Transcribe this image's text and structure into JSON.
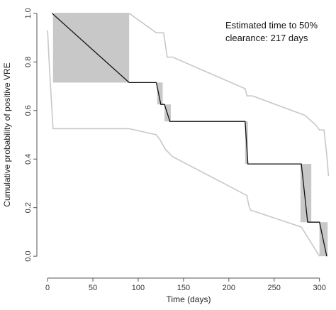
{
  "chart_data": {
    "type": "line",
    "title": "",
    "xlabel": "Time (days)",
    "ylabel": "Cumulative probability of positive VRE",
    "xlim": [
      -4,
      312
    ],
    "ylim": [
      -0.02,
      1.02
    ],
    "x_ticks": [
      0,
      50,
      100,
      150,
      200,
      250,
      300
    ],
    "y_ticks": [
      0.0,
      0.2,
      0.4,
      0.6,
      0.8,
      1.0
    ],
    "x_tick_labels": [
      "0",
      "50",
      "100",
      "150",
      "200",
      "250",
      "300"
    ],
    "y_tick_labels": [
      "0.0",
      "0.2",
      "0.4",
      "0.6",
      "0.8",
      "1.0"
    ],
    "grid": false,
    "annotation": [
      "Estimated time to 50%",
      "clearance: 217 days"
    ],
    "colors": {
      "estimate": "#111111",
      "ci": "#c8c8c8",
      "interval_fill": "#c8c8c8"
    },
    "series": [
      {
        "role": "estimate",
        "x": [
          5,
          90,
          120,
          125,
          129,
          135,
          218,
          221,
          280,
          287,
          300,
          308
        ],
        "y": [
          1.0,
          0.715,
          0.715,
          0.625,
          0.625,
          0.555,
          0.555,
          0.38,
          0.38,
          0.14,
          0.14,
          0.0
        ]
      },
      {
        "role": "upper_ci",
        "x": [
          8,
          90,
          120,
          128,
          132,
          138,
          218,
          220,
          226,
          284,
          290,
          296,
          300,
          305,
          308,
          310
        ],
        "y": [
          1.0,
          1.0,
          0.92,
          0.92,
          0.82,
          0.82,
          0.69,
          0.66,
          0.66,
          0.58,
          0.56,
          0.54,
          0.52,
          0.52,
          0.42,
          0.33
        ]
      },
      {
        "role": "lower_ci",
        "x": [
          0,
          2,
          6,
          90,
          120,
          124,
          130,
          138,
          220,
          222,
          224,
          280,
          290,
          300
        ],
        "y": [
          0.93,
          0.78,
          0.525,
          0.525,
          0.5,
          0.48,
          0.44,
          0.41,
          0.25,
          0.21,
          0.19,
          0.12,
          0.06,
          0.0
        ]
      }
    ],
    "interval_boxes": [
      {
        "x": [
          6,
          90
        ],
        "y": [
          0.715,
          1.0
        ]
      },
      {
        "x": [
          121,
          127
        ],
        "y": [
          0.625,
          0.715
        ]
      },
      {
        "x": [
          129,
          136
        ],
        "y": [
          0.555,
          0.625
        ]
      },
      {
        "x": [
          218,
          221
        ],
        "y": [
          0.38,
          0.555
        ]
      },
      {
        "x": [
          279,
          291
        ],
        "y": [
          0.14,
          0.38
        ]
      },
      {
        "x": [
          300,
          309
        ],
        "y": [
          0.0,
          0.14
        ]
      }
    ]
  }
}
